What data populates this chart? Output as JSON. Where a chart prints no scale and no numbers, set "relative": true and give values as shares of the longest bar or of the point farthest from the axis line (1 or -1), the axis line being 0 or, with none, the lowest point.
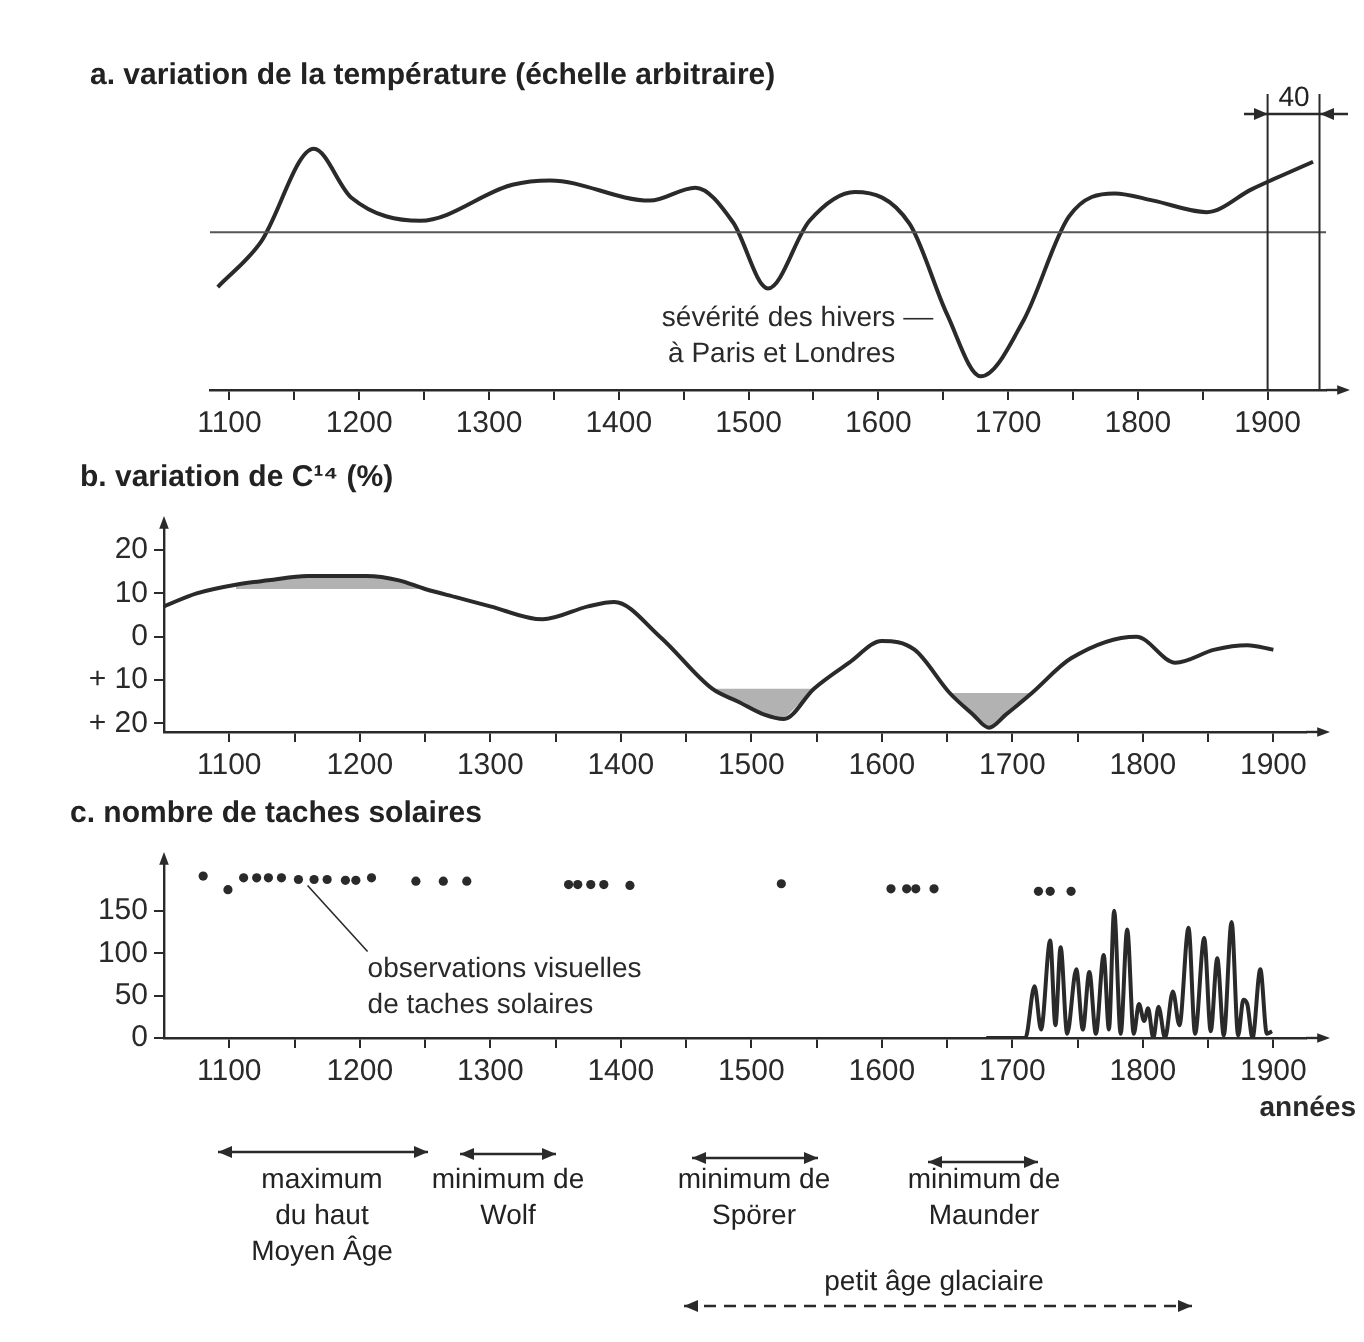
{
  "chart_data": [
    {
      "type": "line",
      "title": "a. variation de la température (échelle arbitraire)",
      "relative": true,
      "x": [
        1091,
        1124,
        1165,
        1194,
        1247,
        1318,
        1347,
        1424,
        1459,
        1488,
        1515,
        1547,
        1582,
        1624,
        1653,
        1679,
        1712,
        1747,
        1782,
        1812,
        1853,
        1888,
        1935
      ],
      "series": [
        {
          "color": "#2a2a2a",
          "values": [
            -0.38,
            -0.07,
            0.58,
            0.24,
            0.08,
            0.33,
            0.36,
            0.22,
            0.31,
            0.07,
            -0.39,
            0.08,
            0.28,
            0.06,
            -0.57,
            -1,
            -0.61,
            0.11,
            0.27,
            0.22,
            0.14,
            0.3,
            0.49
          ]
        }
      ],
      "xlim": [
        1085,
        1945
      ],
      "xticks": [
        1100,
        {
          "value": 1150,
          "label": null
        },
        1200,
        {
          "value": 1250,
          "label": null
        },
        1300,
        {
          "value": 1350,
          "label": null
        },
        1400,
        {
          "value": 1450,
          "label": null
        },
        1500,
        {
          "value": 1550,
          "label": null
        },
        1600,
        {
          "value": 1650,
          "label": null
        },
        1700,
        {
          "value": 1750,
          "label": null
        },
        1800,
        {
          "value": 1850,
          "label": null
        },
        1900
      ],
      "ref_lines": [
        {
          "axis": "y",
          "value": 0,
          "color": "#555555"
        },
        {
          "axis": "x",
          "value": 1900,
          "color": "#2a2a2a"
        },
        {
          "axis": "x",
          "value": 1940,
          "color": "#2a2a2a"
        }
      ],
      "annotations": [
        {
          "text": "sévérité des hivers\nà Paris et Londres",
          "x": 1647,
          "y": -0.6
        },
        "40"
      ],
      "legend": false
    },
    {
      "type": "line",
      "title": "b. variation de C¹⁴ (%)",
      "x": [
        1050,
        1075,
        1105,
        1130,
        1160,
        1185,
        1205,
        1230,
        1250,
        1275,
        1300,
        1340,
        1375,
        1395,
        1430,
        1470,
        1490,
        1510,
        1525,
        1548,
        1575,
        1600,
        1625,
        1652,
        1670,
        1682,
        1695,
        1715,
        1745,
        1795,
        1825,
        1855,
        1880,
        1900
      ],
      "series": [
        {
          "color": "#2a2a2a",
          "values": [
            -7,
            -10,
            -12,
            -13,
            -14,
            -14,
            -14,
            -13,
            -11,
            -9,
            -7,
            -4,
            -7,
            -8,
            0,
            12,
            15,
            18,
            19,
            12,
            6,
            1,
            3,
            13,
            18,
            21,
            18,
            13,
            5,
            0,
            6,
            3,
            2,
            3
          ],
          "lower": [
            null,
            null,
            -12,
            -13,
            -14,
            -14,
            -14,
            -13,
            -11,
            null,
            null,
            null,
            null,
            null,
            null,
            12,
            12,
            12,
            12,
            12,
            null,
            null,
            null,
            13,
            13,
            13,
            13,
            13,
            null,
            null,
            null,
            null,
            null,
            null
          ],
          "upper": [
            null,
            null,
            -11,
            -11,
            -11,
            -11,
            -11,
            -11,
            -11,
            null,
            null,
            null,
            null,
            null,
            null,
            12,
            15,
            18,
            19,
            12,
            null,
            null,
            null,
            13,
            18,
            21,
            18,
            13,
            null,
            null,
            null,
            null,
            null,
            null
          ]
        }
      ],
      "xlim": [
        1050,
        1925
      ],
      "xticks": [
        1100,
        {
          "value": 1150,
          "label": null
        },
        1200,
        {
          "value": 1250,
          "label": null
        },
        1300,
        {
          "value": 1350,
          "label": null
        },
        1400,
        {
          "value": 1450,
          "label": null
        },
        1500,
        {
          "value": 1550,
          "label": null
        },
        1600,
        {
          "value": 1650,
          "label": null
        },
        1700,
        {
          "value": 1750,
          "label": null
        },
        1800,
        {
          "value": 1850,
          "label": null
        },
        1900
      ],
      "ylim": [
        22,
        -26
      ],
      "yticks": [
        {
          "value": -20,
          "label": "20"
        },
        {
          "value": -10,
          "label": "10"
        },
        0,
        {
          "value": 10,
          "label": "+ 10"
        },
        {
          "value": 20,
          "label": "+ 20"
        }
      ],
      "legend": false
    },
    {
      "type": "scatter",
      "title": "c. nombre de taches solaires",
      "xlabel": "années",
      "series": [
        {
          "color": "#2a2a2a",
          "marker": "circle",
          "x": [
            1080,
            1099,
            1111,
            1121,
            1130,
            1140,
            1153,
            1165,
            1175,
            1189,
            1197,
            1209,
            1243,
            1264,
            1282,
            1360,
            1367,
            1377,
            1387,
            1407,
            1523,
            1607,
            1619,
            1626,
            1640,
            1720,
            1729,
            1745
          ],
          "values": [
            191,
            175,
            189,
            189,
            189,
            189,
            187,
            187,
            187,
            186,
            186,
            189,
            185,
            185,
            185,
            181,
            181,
            181,
            181,
            180,
            182,
            176,
            176,
            176,
            176,
            173,
            173,
            173
          ]
        },
        {
          "type": "line",
          "color": "#2a2a2a",
          "x": [
            1680,
            1710,
            1717,
            1722,
            1729,
            1733,
            1737,
            1742,
            1749,
            1754,
            1759,
            1764,
            1770,
            1774,
            1778,
            1783,
            1788,
            1793,
            1797,
            1801,
            1804,
            1808,
            1812,
            1817,
            1823,
            1828,
            1835,
            1840,
            1847,
            1852,
            1857,
            1862,
            1868,
            1873,
            1877,
            1880,
            1884,
            1890,
            1895,
            1899
          ],
          "values": [
            0,
            0,
            61,
            10,
            115,
            15,
            107,
            5,
            81,
            10,
            78,
            5,
            98,
            10,
            150,
            5,
            128,
            5,
            40,
            20,
            35,
            0,
            37,
            0,
            55,
            15,
            130,
            5,
            118,
            8,
            94,
            3,
            137,
            3,
            45,
            40,
            0,
            81,
            5,
            8
          ]
        }
      ],
      "xlim": [
        1050,
        1925
      ],
      "xticks": [
        1100,
        {
          "value": 1150,
          "label": null
        },
        1200,
        {
          "value": 1250,
          "label": null
        },
        1300,
        {
          "value": 1350,
          "label": null
        },
        1400,
        {
          "value": 1450,
          "label": null
        },
        1500,
        {
          "value": 1550,
          "label": null
        },
        1600,
        {
          "value": 1650,
          "label": null
        },
        1700,
        {
          "value": 1750,
          "label": null
        },
        1800,
        {
          "value": 1850,
          "label": null
        },
        1900
      ],
      "ylim": [
        0,
        210
      ],
      "yticks": [
        0,
        50,
        100,
        150
      ],
      "annotations": [
        {
          "text": "observations visuelles\nde taches solaires",
          "x": 1160,
          "y": 187
        },
        "maximum\ndu haut\nMoyen Âge",
        "minimum de\nWolf",
        "minimum de\nSpörer",
        "minimum de\nMaunder",
        "petit âge glaciaire"
      ],
      "legend": false
    }
  ]
}
